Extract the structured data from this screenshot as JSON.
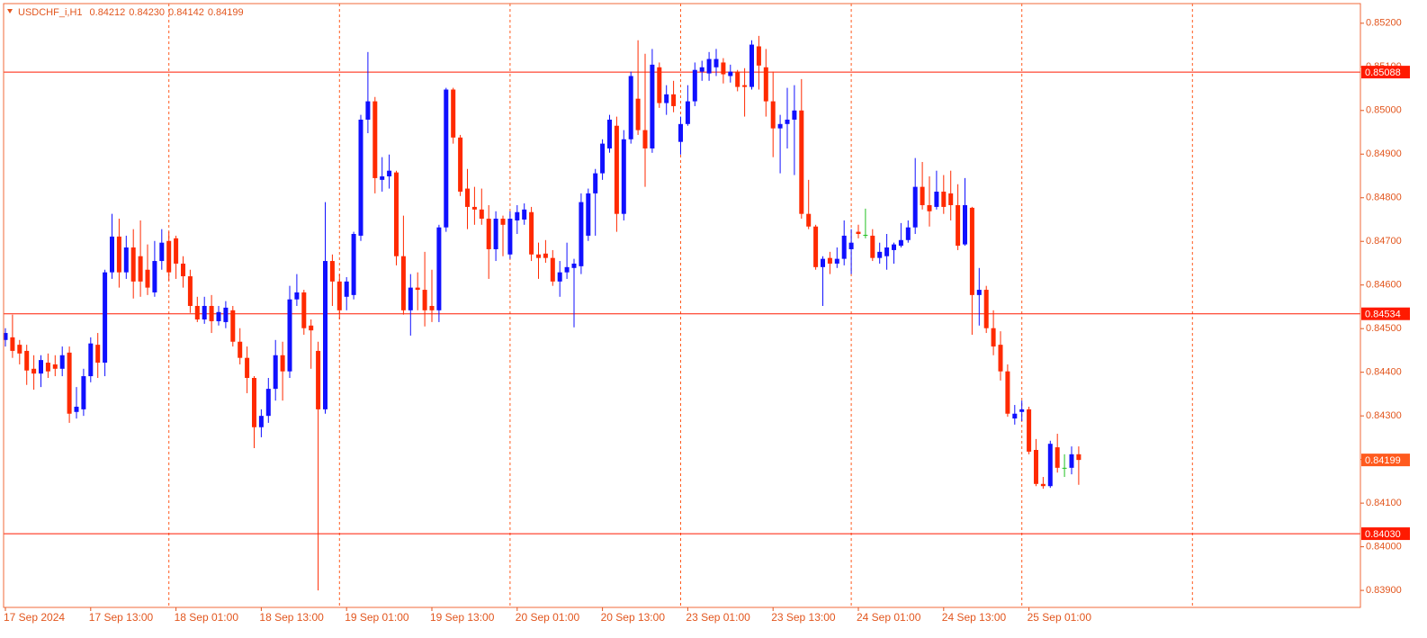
{
  "chart_data": {
    "type": "candlestick",
    "title": "USDCHF_i,H1",
    "title_values": [
      "0.84212",
      "0.84230",
      "0.84142",
      "0.84199"
    ],
    "categories": [
      "17 Sep 2024",
      null,
      null,
      null,
      null,
      null,
      null,
      null,
      null,
      null,
      null,
      null,
      "17 Sep 13:00",
      null,
      null,
      null,
      null,
      null,
      null,
      null,
      null,
      null,
      null,
      null,
      "18 Sep 01:00",
      null,
      null,
      null,
      null,
      null,
      null,
      null,
      null,
      null,
      null,
      null,
      "18 Sep 13:00",
      null,
      null,
      null,
      null,
      null,
      null,
      null,
      null,
      null,
      null,
      null,
      "19 Sep 01:00",
      null,
      null,
      null,
      null,
      null,
      null,
      null,
      null,
      null,
      null,
      null,
      "19 Sep 13:00",
      null,
      null,
      null,
      null,
      null,
      null,
      null,
      null,
      null,
      null,
      null,
      "20 Sep 01:00",
      null,
      null,
      null,
      null,
      null,
      null,
      null,
      null,
      null,
      null,
      null,
      "20 Sep 13:00",
      null,
      null,
      null,
      null,
      null,
      null,
      null,
      null,
      null,
      null,
      null,
      "23 Sep 01:00",
      null,
      null,
      null,
      null,
      null,
      null,
      null,
      null,
      null,
      null,
      null,
      "23 Sep 13:00",
      null,
      null,
      null,
      null,
      null,
      null,
      null,
      null,
      null,
      null,
      null,
      "24 Sep 01:00",
      null,
      null,
      null,
      null,
      null,
      null,
      null,
      null,
      null,
      null,
      null,
      "24 Sep 13:00",
      null,
      null,
      null,
      null,
      null,
      null,
      null,
      null,
      null,
      null,
      null,
      "25 Sep 01:00",
      null,
      null,
      null,
      null,
      null,
      null,
      null
    ],
    "open": [
      0.84474,
      0.8448,
      0.84463,
      0.84449,
      0.84408,
      0.84397,
      0.84422,
      0.84418,
      0.84408,
      0.84445,
      0.84309,
      0.84315,
      0.84391,
      0.84463,
      0.84422,
      0.84629,
      0.84711,
      0.84629,
      0.84686,
      0.84666,
      0.84635,
      0.84583,
      0.84655,
      0.84701,
      0.84707,
      0.84649,
      0.8462,
      0.84552,
      0.84521,
      0.84552,
      0.84517,
      0.84515,
      0.84542,
      0.8447,
      0.84433,
      0.84387,
      0.84274,
      0.843,
      0.84362,
      0.84439,
      0.84402,
      0.84567,
      0.84583,
      0.84507,
      0.84449,
      0.84315,
      0.84655,
      0.84608,
      0.84573,
      0.84577,
      0.84713,
      0.84979,
      0.85021,
      0.84841,
      0.84849,
      0.84858,
      0.84666,
      0.84542,
      0.84594,
      0.84589,
      0.84552,
      0.84542,
      0.84732,
      0.85048,
      0.84938,
      0.84821,
      0.84779,
      0.84773,
      0.84752,
      0.84682,
      0.84752,
      0.8467,
      0.84748,
      0.8475,
      0.84767,
      0.8467,
      0.84672,
      0.84662,
      0.84608,
      0.84629,
      0.84639,
      0.84643,
      0.84713,
      0.8481,
      0.84856,
      0.84913,
      0.84965,
      0.84763,
      0.84934,
      0.85027,
      0.84955,
      0.84913,
      0.85099,
      0.85017,
      0.85037,
      0.84928,
      0.84969,
      0.85021,
      0.85089,
      0.85085,
      0.85099,
      0.8511,
      0.85079,
      0.85089,
      0.85058,
      0.85054,
      0.85147,
      0.85099,
      0.85021,
      0.84959,
      0.84969,
      0.84979,
      0.85,
      0.84763,
      0.84734,
      0.84641,
      0.84662,
      0.84649,
      0.8466,
      0.84682,
      0.84722,
      0.84715,
      0.84713,
      0.84662,
      0.84666,
      0.8468,
      0.8469,
      0.84703,
      0.84732,
      0.84825,
      0.84783,
      0.84779,
      0.84814,
      0.8481,
      0.84783,
      0.84693,
      0.84777,
      0.84577,
      0.84589,
      0.84501,
      0.84463,
      0.84402,
      0.84294,
      0.84309,
      0.84315,
      0.84222,
      0.84144,
      0.84139,
      0.84228,
      0.84181,
      0.84181,
      0.84212
    ],
    "high": [
      0.84501,
      0.84532,
      0.84474,
      0.84463,
      0.84439,
      0.84439,
      0.84443,
      0.84439,
      0.84459,
      0.84459,
      0.84366,
      0.84408,
      0.8448,
      0.8449,
      0.84635,
      0.84763,
      0.84752,
      0.84713,
      0.84728,
      0.84748,
      0.84693,
      0.84701,
      0.84728,
      0.84722,
      0.84713,
      0.84666,
      0.84635,
      0.84573,
      0.84573,
      0.84577,
      0.84552,
      0.84563,
      0.84552,
      0.84501,
      0.84459,
      0.84391,
      0.84315,
      0.84387,
      0.84474,
      0.8447,
      0.84598,
      0.84625,
      0.84589,
      0.84521,
      0.8447,
      0.8479,
      0.8467,
      0.84625,
      0.84618,
      0.84722,
      0.8499,
      0.85134,
      0.85031,
      0.84893,
      0.84899,
      0.84862,
      0.84759,
      0.84625,
      0.84629,
      0.84676,
      0.84635,
      0.84738,
      0.85052,
      0.85052,
      0.84944,
      0.84866,
      0.84825,
      0.84821,
      0.84783,
      0.84769,
      0.84759,
      0.84769,
      0.84783,
      0.84787,
      0.84779,
      0.84697,
      0.84703,
      0.8468,
      0.84655,
      0.84697,
      0.8466,
      0.8481,
      0.84821,
      0.84866,
      0.84934,
      0.8499,
      0.84986,
      0.84955,
      0.85089,
      0.85161,
      0.8513,
      0.85141,
      0.8511,
      0.85058,
      0.85068,
      0.84986,
      0.85058,
      0.8511,
      0.85114,
      0.85134,
      0.85141,
      0.8512,
      0.85105,
      0.85093,
      0.85097,
      0.85161,
      0.85171,
      0.85141,
      0.85089,
      0.8499,
      0.85052,
      0.85058,
      0.85072,
      0.84841,
      0.84738,
      0.84666,
      0.84676,
      0.84686,
      0.84748,
      0.84728,
      0.84738,
      0.84775,
      0.84728,
      0.84697,
      0.84717,
      0.84697,
      0.84742,
      0.84748,
      0.84891,
      0.84882,
      0.84849,
      0.84862,
      0.84852,
      0.84862,
      0.84831,
      0.84845,
      0.84779,
      0.84639,
      0.84598,
      0.84542,
      0.84494,
      0.84418,
      0.84325,
      0.84335,
      0.84321,
      0.84247,
      0.8416,
      0.84243,
      0.84259,
      0.84212,
      0.8423,
      0.8423
    ],
    "low": [
      0.84459,
      0.84433,
      0.84418,
      0.84371,
      0.8436,
      0.84366,
      0.84387,
      0.84391,
      0.84391,
      0.84284,
      0.84294,
      0.843,
      0.84377,
      0.84387,
      0.84391,
      0.84614,
      0.84594,
      0.84614,
      0.84569,
      0.84573,
      0.84577,
      0.84573,
      0.84635,
      0.8461,
      0.84614,
      0.84594,
      0.84536,
      0.84515,
      0.84511,
      0.8449,
      0.84507,
      0.84501,
      0.84459,
      0.84418,
      0.84352,
      0.84226,
      0.84251,
      0.84284,
      0.84335,
      0.84335,
      0.84387,
      0.84552,
      0.84486,
      0.84408,
      0.839,
      0.84305,
      0.84552,
      0.84521,
      0.84542,
      0.84567,
      0.84701,
      0.84948,
      0.8481,
      0.84814,
      0.84821,
      0.84645,
      0.84532,
      0.84484,
      0.84542,
      0.84505,
      0.84515,
      0.84515,
      0.84722,
      0.84924,
      0.84804,
      0.84728,
      0.84738,
      0.84738,
      0.84614,
      0.84655,
      0.84666,
      0.8466,
      0.84717,
      0.84738,
      0.84655,
      0.84614,
      0.84651,
      0.84598,
      0.84573,
      0.84614,
      0.84503,
      0.84625,
      0.84701,
      0.84713,
      0.84841,
      0.84903,
      0.84722,
      0.84748,
      0.84924,
      0.84944,
      0.84825,
      0.84903,
      0.85006,
      0.8499,
      0.84996,
      0.84899,
      0.84965,
      0.8501,
      0.85068,
      0.85068,
      0.85079,
      0.85062,
      0.85064,
      0.85044,
      0.84986,
      0.85048,
      0.85048,
      0.84986,
      0.84893,
      0.84856,
      0.84913,
      0.84852,
      0.84752,
      0.84728,
      0.84635,
      0.84552,
      0.84625,
      0.84639,
      0.84645,
      0.84625,
      0.84707,
      0.84707,
      0.84655,
      0.84649,
      0.84635,
      0.84649,
      0.84686,
      0.84697,
      0.84717,
      0.84773,
      0.84734,
      0.84773,
      0.84763,
      0.84748,
      0.8468,
      0.8469,
      0.84486,
      0.84507,
      0.8449,
      0.84439,
      0.84381,
      0.84298,
      0.8428,
      0.84288,
      0.84212,
      0.84139,
      0.84133,
      0.84135,
      0.8417,
      0.8416,
      0.84166,
      0.84142
    ],
    "close": [
      0.8449,
      0.84449,
      0.84443,
      0.84404,
      0.84397,
      0.84428,
      0.84402,
      0.84408,
      0.84439,
      0.84305,
      0.84321,
      0.84391,
      0.84466,
      0.84422,
      0.84629,
      0.84711,
      0.84629,
      0.84686,
      0.84608,
      0.84608,
      0.84594,
      0.84655,
      0.84697,
      0.84629,
      0.84649,
      0.8462,
      0.84552,
      0.84521,
      0.84552,
      0.84517,
      0.84538,
      0.84548,
      0.8447,
      0.84433,
      0.84387,
      0.84274,
      0.843,
      0.84362,
      0.84439,
      0.84402,
      0.84567,
      0.84583,
      0.84501,
      0.84496,
      0.84315,
      0.84655,
      0.84608,
      0.84542,
      0.84608,
      0.84717,
      0.84979,
      0.85021,
      0.84845,
      0.84849,
      0.84862,
      0.84666,
      0.84542,
      0.84594,
      0.84589,
      0.84542,
      0.84542,
      0.84732,
      0.85048,
      0.84938,
      0.84814,
      0.84779,
      0.84773,
      0.84752,
      0.84682,
      0.84752,
      0.84738,
      0.84752,
      0.84767,
      0.84773,
      0.8467,
      0.84662,
      0.84662,
      0.84608,
      0.84629,
      0.84641,
      0.84649,
      0.8479,
      0.8481,
      0.84856,
      0.84924,
      0.84979,
      0.84763,
      0.84934,
      0.85079,
      0.84955,
      0.84913,
      0.85105,
      0.85017,
      0.85037,
      0.8501,
      0.84969,
      0.85021,
      0.85093,
      0.85099,
      0.85118,
      0.85118,
      0.85083,
      0.85089,
      0.85054,
      0.85054,
      0.85151,
      0.85103,
      0.85021,
      0.84959,
      0.84969,
      0.84979,
      0.85,
      0.84763,
      0.84734,
      0.84641,
      0.8466,
      0.84649,
      0.8466,
      0.84713,
      0.84697,
      0.84717,
      0.84715,
      0.84662,
      0.84676,
      0.84686,
      0.84693,
      0.84703,
      0.84732,
      0.84825,
      0.84783,
      0.84769,
      0.84814,
      0.84779,
      0.84783,
      0.8469,
      0.84783,
      0.84577,
      0.84589,
      0.84501,
      0.84459,
      0.84402,
      0.84305,
      0.84305,
      0.84315,
      0.84218,
      0.84144,
      0.84139,
      0.84236,
      0.84181,
      0.84181,
      0.84212,
      0.84199
    ],
    "up_color": "#1010ff",
    "down_color": "#ff2a00",
    "doji_color": "#22c022",
    "ylim": [
      0.83861,
      0.85245
    ],
    "yticks": [
      {
        "value": 0.852,
        "label": "0.85200"
      },
      {
        "value": 0.851,
        "label": "0.85100"
      },
      {
        "value": 0.85,
        "label": "0.85000"
      },
      {
        "value": 0.849,
        "label": "0.84900"
      },
      {
        "value": 0.848,
        "label": "0.84800"
      },
      {
        "value": 0.847,
        "label": "0.84700"
      },
      {
        "value": 0.846,
        "label": "0.84600"
      },
      {
        "value": 0.845,
        "label": "0.84500"
      },
      {
        "value": 0.844,
        "label": "0.84400"
      },
      {
        "value": 0.843,
        "label": "0.84300"
      },
      {
        "value": 0.842,
        "label": "0.84200"
      },
      {
        "value": 0.841,
        "label": "0.84100"
      },
      {
        "value": 0.84,
        "label": "0.84000"
      },
      {
        "value": 0.839,
        "label": "0.83900"
      }
    ],
    "hlines": [
      {
        "value": 0.85088,
        "label": "0.85088"
      },
      {
        "value": 0.84534,
        "label": "0.84534"
      },
      {
        "value": 0.8403,
        "label": "0.84030"
      }
    ],
    "current_price": {
      "value": 0.84199,
      "label": "0.84199"
    },
    "line_color": "#ff1a00",
    "grid": true,
    "grid_color": "#ff5a1e"
  }
}
